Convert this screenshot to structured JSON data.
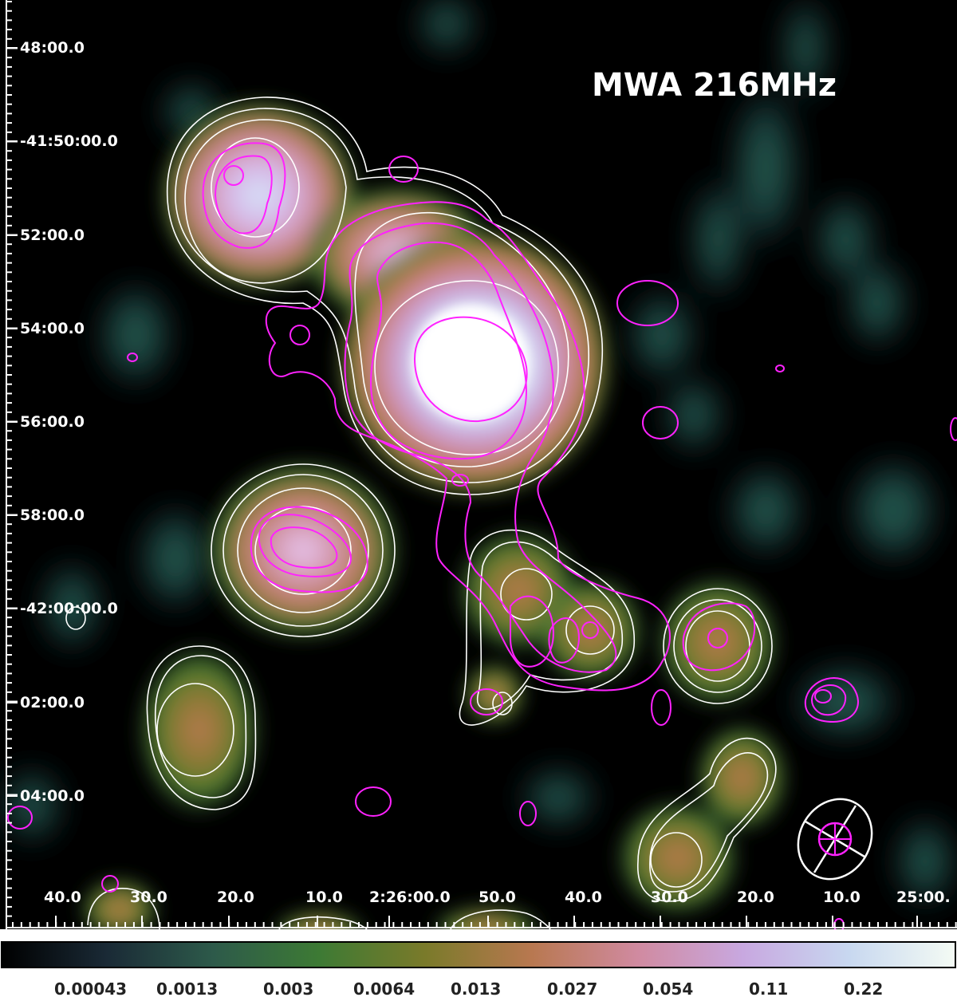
{
  "title": "MWA 216MHz",
  "dec_labels": [
    "48:00.0",
    "-41:50:00.0",
    "52:00.0",
    "54:00.0",
    "56:00.0",
    "58:00.0",
    "-42:00:00.0",
    "02:00.0",
    "04:00.0"
  ],
  "ra_labels": [
    "40.0",
    "30.0",
    "20.0",
    "10.0",
    "2:26:00.0",
    "50.0",
    "40.0",
    "30.0",
    "20.0",
    "10.0",
    "25:00."
  ],
  "colorbar": {
    "labels": [
      "0.00043",
      "0.0013",
      "0.003",
      "0.0064",
      "0.013",
      "0.027",
      "0.054",
      "0.11",
      "0.22"
    ],
    "colormap": [
      "#000000",
      "#1a2a36",
      "#2d5a4a",
      "#3d7a34",
      "#7a7a2a",
      "#b87850",
      "#d08aa0",
      "#c8a8e0",
      "#c8d8f0",
      "#f4fbf4"
    ]
  },
  "colors": {
    "white_contours": "#ffffff",
    "magenta_contours": "#ff22ff"
  }
}
